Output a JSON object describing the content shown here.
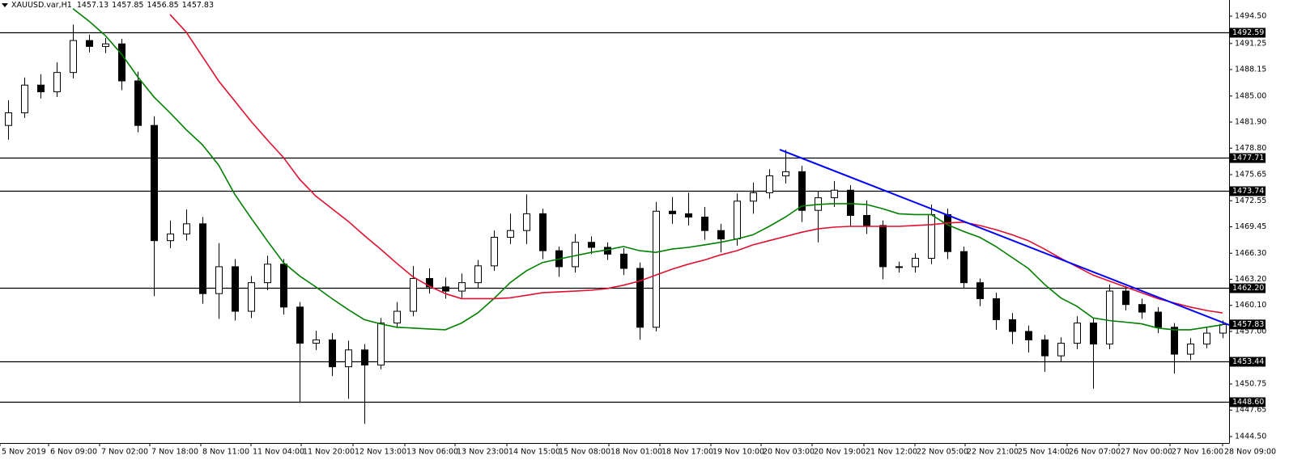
{
  "chart_data": {
    "type": "candlestick",
    "header": {
      "symbol": "XAUUSD.var,H1",
      "ohlc": [
        1457.13,
        1457.85,
        1456.85,
        1457.83
      ]
    },
    "xlim": [
      -0.5,
      75.4
    ],
    "ylim": [
      1443.73,
      1496.42
    ],
    "yticks": [
      {
        "value": 1494.5,
        "label": "1494.50"
      },
      1491.25,
      1488.15,
      {
        "value": 1485.0,
        "label": "1485.00"
      },
      {
        "value": 1481.9,
        "label": "1481.90"
      },
      {
        "value": 1478.8,
        "label": "1478.80"
      },
      1475.65,
      1472.55,
      1469.45,
      {
        "value": 1466.3,
        "label": "1466.30"
      },
      {
        "value": 1463.2,
        "label": "1463.20"
      },
      {
        "value": 1460.1,
        "label": "1460.10"
      },
      {
        "value": 1457.0,
        "label": "1457.00"
      },
      1450.75,
      1447.65,
      {
        "value": 1444.5,
        "label": "1444.50"
      }
    ],
    "xticks": [
      {
        "value": -0.5,
        "label": "5 Nov 2019"
      },
      {
        "value": 2.5,
        "label": "6 Nov 09:00"
      },
      {
        "value": 5.65,
        "label": "7 Nov 02:00"
      },
      {
        "value": 8.75,
        "label": "7 Nov 18:00"
      },
      {
        "value": 11.9,
        "label": "8 Nov 11:00"
      },
      {
        "value": 15,
        "label": "11 Nov 04:00"
      },
      {
        "value": 18.1,
        "label": "11 Nov 20:00"
      },
      {
        "value": 21.3,
        "label": "12 Nov 13:00"
      },
      {
        "value": 24.5,
        "label": "13 Nov 06:00"
      },
      {
        "value": 27.6,
        "label": "13 Nov 23:00"
      },
      {
        "value": 30.8,
        "label": "14 Nov 15:00"
      },
      {
        "value": 33.9,
        "label": "15 Nov 08:00"
      },
      {
        "value": 37.1,
        "label": "18 Nov 01:00"
      },
      {
        "value": 40.25,
        "label": "18 Nov 17:00"
      },
      {
        "value": 43.4,
        "label": "19 Nov 10:00"
      },
      {
        "value": 46.5,
        "label": "20 Nov 03:00"
      },
      {
        "value": 49.65,
        "label": "20 Nov 19:00"
      },
      {
        "value": 52.85,
        "label": "21 Nov 12:00"
      },
      {
        "value": 56,
        "label": "22 Nov 05:00"
      },
      {
        "value": 59.1,
        "label": "22 Nov 21:00"
      },
      {
        "value": 62.25,
        "label": "25 Nov 14:00"
      },
      {
        "value": 65.4,
        "label": "26 Nov 07:00"
      },
      {
        "value": 68.6,
        "label": "27 Nov 00:00"
      },
      {
        "value": 71.75,
        "label": "27 Nov 16:00"
      },
      {
        "value": 75,
        "label": "28 Nov 09:00"
      }
    ],
    "up_color": "#ffffff",
    "down_color": "#000000",
    "wick_color": "#000000",
    "open": [
      1481.5,
      1483.0,
      1486.3,
      1485.5,
      1487.8,
      1491.6,
      1490.9,
      1491.2,
      1486.8,
      1481.5,
      1467.8,
      1468.6,
      1469.8,
      1461.5,
      1464.7,
      1459.4,
      1462.8,
      1465.0,
      1459.9,
      1455.6,
      1456.0,
      1452.8,
      1454.8,
      1453.0,
      1458.0,
      1459.4,
      1463.3,
      1462.3,
      1461.8,
      1462.8,
      1464.8,
      1468.2,
      1469.0,
      1471.0,
      1466.6,
      1464.7,
      1467.6,
      1467.0,
      1466.2,
      1464.5,
      1457.5,
      1471.3,
      1471.0,
      1470.6,
      1469.0,
      1468.0,
      1472.5,
      1473.5,
      1475.5,
      1476.0,
      1471.4,
      1472.9,
      1473.8,
      1470.8,
      1469.6,
      1464.7,
      1464.7,
      1465.7,
      1470.9,
      1466.5,
      1462.8,
      1460.9,
      1458.4,
      1457.0,
      1456.0,
      1454.1,
      1455.6,
      1458.0,
      1455.5,
      1461.8,
      1460.2,
      1459.3,
      1457.5,
      1454.3,
      1455.5,
      1456.8
    ],
    "high": [
      1484.5,
      1487.2,
      1487.6,
      1489.0,
      1493.5,
      1492.3,
      1491.9,
      1491.8,
      1487.9,
      1482.6,
      1470.2,
      1471.5,
      1470.6,
      1467.5,
      1465.6,
      1463.6,
      1466.0,
      1465.6,
      1460.5,
      1457.1,
      1456.8,
      1455.9,
      1455.5,
      1458.6,
      1460.5,
      1464.8,
      1464.5,
      1463.4,
      1463.9,
      1465.5,
      1469.0,
      1471.0,
      1473.3,
      1471.6,
      1467.1,
      1468.6,
      1468.3,
      1467.6,
      1466.9,
      1465.2,
      1472.4,
      1473.0,
      1473.5,
      1471.8,
      1469.8,
      1473.4,
      1474.7,
      1476.3,
      1478.6,
      1476.7,
      1473.7,
      1474.9,
      1474.4,
      1472.6,
      1470.2,
      1465.3,
      1466.3,
      1472.1,
      1471.6,
      1467.1,
      1463.3,
      1461.6,
      1459.2,
      1457.7,
      1456.6,
      1456.3,
      1458.8,
      1458.6,
      1462.6,
      1462.4,
      1460.9,
      1459.9,
      1458.0,
      1456.2,
      1457.5,
      1458.3
    ],
    "low": [
      1479.8,
      1482.4,
      1484.7,
      1484.9,
      1487.1,
      1490.2,
      1490.1,
      1485.7,
      1480.7,
      1461.2,
      1466.9,
      1467.8,
      1460.3,
      1458.5,
      1458.3,
      1458.6,
      1461.9,
      1459.0,
      1448.5,
      1454.8,
      1451.7,
      1449.0,
      1446.0,
      1452.5,
      1457.4,
      1458.8,
      1461.5,
      1460.9,
      1461.0,
      1462.1,
      1464.2,
      1467.4,
      1467.4,
      1465.6,
      1463.5,
      1464.0,
      1466.2,
      1465.5,
      1463.7,
      1456.0,
      1457.0,
      1469.8,
      1469.6,
      1467.9,
      1466.4,
      1467.2,
      1471.0,
      1472.8,
      1474.6,
      1470.0,
      1467.6,
      1471.8,
      1469.5,
      1468.6,
      1463.2,
      1464.0,
      1464.0,
      1465.0,
      1465.6,
      1462.1,
      1460.0,
      1457.2,
      1455.5,
      1454.5,
      1452.2,
      1453.4,
      1454.9,
      1450.2,
      1454.9,
      1459.5,
      1458.5,
      1456.8,
      1452.0,
      1453.6,
      1455.0,
      1456.2
    ],
    "close": [
      1483.0,
      1486.3,
      1485.5,
      1487.8,
      1491.6,
      1490.9,
      1491.2,
      1486.8,
      1481.5,
      1467.8,
      1468.6,
      1469.8,
      1461.5,
      1464.7,
      1459.4,
      1462.8,
      1465.0,
      1459.9,
      1455.6,
      1456.0,
      1452.8,
      1454.8,
      1453.0,
      1458.0,
      1459.4,
      1463.3,
      1462.3,
      1461.8,
      1462.8,
      1464.8,
      1468.2,
      1469.0,
      1471.0,
      1466.6,
      1464.7,
      1467.6,
      1467.0,
      1466.2,
      1464.5,
      1457.5,
      1471.3,
      1471.0,
      1470.6,
      1469.0,
      1468.0,
      1472.5,
      1473.5,
      1475.5,
      1476.0,
      1471.4,
      1472.9,
      1473.8,
      1470.8,
      1469.6,
      1464.7,
      1464.7,
      1465.7,
      1470.9,
      1466.5,
      1462.8,
      1460.9,
      1458.4,
      1457.0,
      1456.0,
      1454.1,
      1455.6,
      1458.0,
      1455.5,
      1461.8,
      1460.2,
      1459.3,
      1457.5,
      1454.3,
      1455.5,
      1456.8,
      1457.83
    ],
    "lines": [
      {
        "color": "#008000",
        "values": [
          null,
          null,
          null,
          null,
          1495.4,
          1493.9,
          1492.2,
          1490.0,
          1487.3,
          1484.9,
          1483.0,
          1481.0,
          1479.2,
          1476.8,
          1473.3,
          1470.5,
          1467.8,
          1465.2,
          1463.6,
          1462.3,
          1460.9,
          1459.6,
          1458.4,
          1457.9,
          1457.5,
          1457.4,
          1457.3,
          1457.2,
          1458.0,
          1459.2,
          1460.9,
          1462.8,
          1464.2,
          1465.2,
          1465.6,
          1466.0,
          1466.4,
          1466.7,
          1467.1,
          1466.6,
          1466.4,
          1466.8,
          1467.0,
          1467.3,
          1467.6,
          1468.0,
          1468.5,
          1469.5,
          1470.6,
          1471.9,
          1472.1,
          1472.2,
          1472.2,
          1472.1,
          1471.6,
          1471.0,
          1470.9,
          1470.9,
          1469.7,
          1468.9,
          1468.2,
          1467.1,
          1465.8,
          1464.5,
          1462.6,
          1461.0,
          1460.0,
          1458.6,
          1458.3,
          1458.1,
          1457.9,
          1457.4,
          1457.2,
          1457.2,
          1457.5,
          1457.8
        ]
      },
      {
        "color": "#e0102f",
        "values": [
          null,
          null,
          null,
          null,
          null,
          null,
          null,
          null,
          null,
          null,
          1494.7,
          1492.6,
          1489.7,
          1486.8,
          1484.4,
          1482.0,
          1479.8,
          1477.7,
          1475.1,
          1473.1,
          1471.6,
          1470.1,
          1468.4,
          1466.8,
          1465.1,
          1463.5,
          1462.4,
          1461.5,
          1460.9,
          1460.9,
          1460.9,
          1461.0,
          1461.3,
          1461.6,
          1461.7,
          1461.8,
          1461.9,
          1462.1,
          1462.5,
          1463.0,
          1463.7,
          1464.4,
          1465.0,
          1465.5,
          1466.1,
          1466.6,
          1467.3,
          1467.8,
          1468.3,
          1468.8,
          1469.2,
          1469.4,
          1469.5,
          1469.5,
          1469.5,
          1469.5,
          1469.6,
          1469.7,
          1469.9,
          1470.0,
          1469.6,
          1469.1,
          1468.5,
          1467.8,
          1466.8,
          1465.7,
          1464.7,
          1463.7,
          1463.0,
          1462.3,
          1461.6,
          1460.9,
          1460.4,
          1459.9,
          1459.5,
          1459.2
        ]
      }
    ],
    "trendline": {
      "color": "#0000ff",
      "x": [
        47.65,
        75.4
      ],
      "values": [
        1478.63,
        1457.77
      ]
    },
    "levels": [
      1492.59,
      1477.71,
      1473.74,
      {
        "value": 1462.2,
        "label": "1462.20"
      },
      1453.44,
      {
        "value": 1448.6,
        "label": "1448.60"
      }
    ],
    "price": 1457.83
  }
}
